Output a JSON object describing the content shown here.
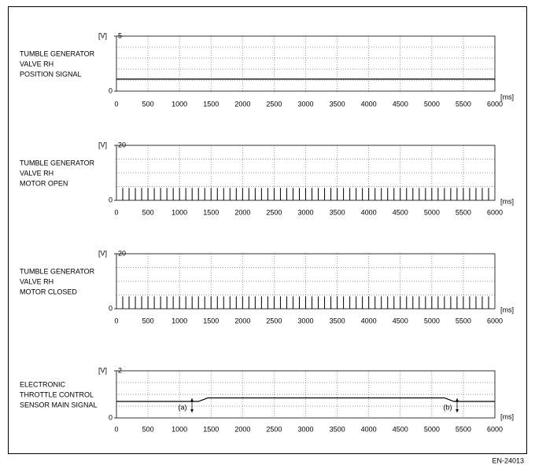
{
  "chart_data": [
    {
      "type": "line",
      "title": [
        "TUMBLE GENERATOR",
        "VALVE RH",
        "POSITION SIGNAL"
      ],
      "y_unit": "[V]",
      "x_unit": "[ms]",
      "xlim": [
        0,
        6000
      ],
      "xticks": [
        0,
        500,
        1000,
        1500,
        2000,
        2500,
        3000,
        3500,
        4000,
        4500,
        5000,
        5500,
        6000
      ],
      "ylim": [
        0,
        5
      ],
      "yticks": [
        0,
        5
      ],
      "ygrid": [
        1,
        2,
        3,
        4
      ],
      "color": "#000000",
      "x": [
        0,
        6000
      ],
      "values": [
        1.1,
        1.1
      ]
    },
    {
      "type": "pulse",
      "title": [
        "TUMBLE GENERATOR",
        "VALVE RH",
        "MOTOR OPEN"
      ],
      "y_unit": "[V]",
      "x_unit": "[ms]",
      "xlim": [
        0,
        6000
      ],
      "xticks": [
        0,
        500,
        1000,
        1500,
        2000,
        2500,
        3000,
        3500,
        4000,
        4500,
        5000,
        5500,
        6000
      ],
      "ylim": [
        0,
        20
      ],
      "yticks": [
        0,
        20
      ],
      "ygrid": [
        5,
        10,
        15
      ],
      "color": "#000000",
      "x": [
        100,
        200,
        300,
        400,
        500,
        600,
        700,
        800,
        900,
        1000,
        1100,
        1200,
        1300,
        1400,
        1500,
        1600,
        1700,
        1800,
        1900,
        2000,
        2100,
        2200,
        2300,
        2400,
        2500,
        2600,
        2700,
        2800,
        2900,
        3000,
        3100,
        3200,
        3300,
        3400,
        3500,
        3600,
        3700,
        3800,
        3900,
        4000,
        4100,
        4200,
        4300,
        4400,
        4500,
        4600,
        4700,
        4800,
        4900,
        5000,
        5100,
        5200,
        5300,
        5400,
        5500,
        5600,
        5700,
        5800,
        5900
      ],
      "values": [
        4.5,
        4.5,
        4.5,
        4.5,
        4.5,
        4.5,
        4.5,
        4.5,
        4.5,
        4.5,
        4.5,
        4.5,
        4.5,
        4.5,
        4.5,
        4.5,
        4.5,
        4.5,
        4.5,
        4.5,
        4.5,
        4.5,
        4.5,
        4.5,
        4.5,
        4.5,
        4.5,
        4.5,
        4.5,
        4.5,
        4.5,
        4.5,
        4.5,
        4.5,
        4.5,
        4.5,
        4.5,
        4.5,
        4.5,
        4.5,
        4.5,
        4.5,
        4.5,
        4.5,
        4.5,
        4.5,
        4.5,
        4.5,
        4.5,
        4.5,
        4.5,
        4.5,
        4.5,
        4.5,
        4.5,
        4.5,
        4.5,
        4.5,
        4.5
      ]
    },
    {
      "type": "pulse",
      "title": [
        "TUMBLE GENERATOR",
        "VALVE RH",
        "MOTOR CLOSED"
      ],
      "y_unit": "[V]",
      "x_unit": "[ms]",
      "xlim": [
        0,
        6000
      ],
      "xticks": [
        0,
        500,
        1000,
        1500,
        2000,
        2500,
        3000,
        3500,
        4000,
        4500,
        5000,
        5500,
        6000
      ],
      "ylim": [
        0,
        20
      ],
      "yticks": [
        0,
        20
      ],
      "ygrid": [
        5,
        10,
        15
      ],
      "color": "#000000",
      "x": [
        100,
        200,
        300,
        400,
        500,
        600,
        700,
        800,
        900,
        1000,
        1100,
        1200,
        1300,
        1400,
        1500,
        1600,
        1700,
        1800,
        1900,
        2000,
        2100,
        2200,
        2300,
        2400,
        2500,
        2600,
        2700,
        2800,
        2900,
        3000,
        3100,
        3200,
        3300,
        3400,
        3500,
        3600,
        3700,
        3800,
        3900,
        4000,
        4100,
        4200,
        4300,
        4400,
        4500,
        4600,
        4700,
        4800,
        4900,
        5000,
        5100,
        5200,
        5300,
        5400,
        5500,
        5600,
        5700,
        5800,
        5900
      ],
      "values": [
        4.5,
        4.5,
        4.5,
        4.5,
        4.5,
        4.5,
        4.5,
        4.5,
        4.5,
        4.5,
        4.5,
        4.5,
        4.5,
        4.5,
        4.5,
        4.5,
        4.5,
        4.5,
        4.5,
        4.5,
        4.5,
        4.5,
        4.5,
        4.5,
        4.5,
        4.5,
        4.5,
        4.5,
        4.5,
        4.5,
        4.5,
        4.5,
        4.5,
        4.5,
        4.5,
        4.5,
        4.5,
        4.5,
        4.5,
        4.5,
        4.5,
        4.5,
        4.5,
        4.5,
        4.5,
        4.5,
        4.5,
        4.5,
        4.5,
        4.5,
        4.5,
        4.5,
        4.5,
        4.5,
        4.5,
        4.5,
        4.5,
        4.5,
        4.5
      ]
    },
    {
      "type": "line",
      "title": [
        "ELECTRONIC",
        "THROTTLE CONTROL",
        "SENSOR MAIN SIGNAL"
      ],
      "y_unit": "[V]",
      "x_unit": "[ms]",
      "xlim": [
        0,
        6000
      ],
      "xticks": [
        0,
        500,
        1000,
        1500,
        2000,
        2500,
        3000,
        3500,
        4000,
        4500,
        5000,
        5500,
        6000
      ],
      "ylim": [
        0,
        2
      ],
      "yticks": [
        0,
        2
      ],
      "ygrid": [
        0.5,
        1,
        1.5
      ],
      "color": "#000000",
      "x": [
        0,
        1300,
        1450,
        5200,
        5350,
        6000
      ],
      "values": [
        0.7,
        0.7,
        0.85,
        0.85,
        0.7,
        0.7
      ],
      "annotations": [
        "(a)",
        "(b)"
      ]
    }
  ],
  "figure_code": "EN-24013"
}
